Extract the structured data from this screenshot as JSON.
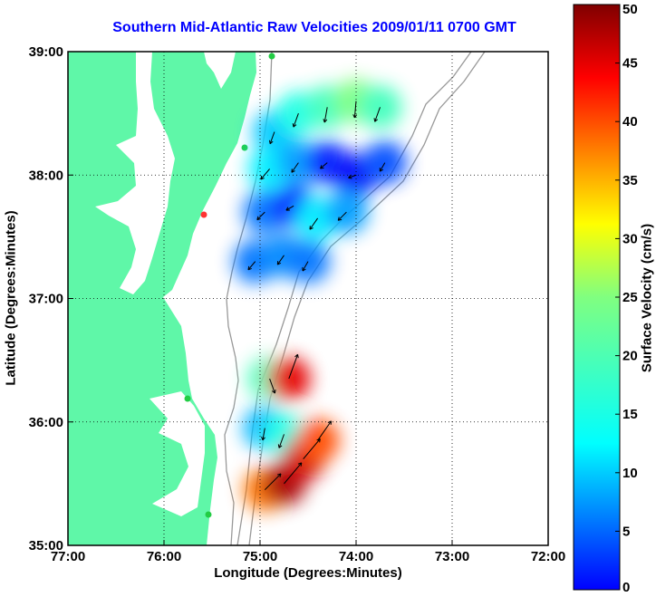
{
  "chart_data": {
    "type": "heatmap",
    "title": "Southern Mid-Atlantic Raw Velocities 2009/01/11 0700 GMT",
    "xlabel": "Longitude (Degrees:Minutes)",
    "ylabel": "Latitude (Degrees:Minutes)",
    "colorbar_label": "Surface Velocity (cm/s)",
    "xlim": [
      -77,
      -72
    ],
    "ylim": [
      35,
      39
    ],
    "colorbar_range": [
      0,
      50
    ],
    "x_ticks": [
      {
        "value": -77,
        "label": "77:00"
      },
      {
        "value": -76,
        "label": "76:00"
      },
      {
        "value": -75,
        "label": "75:00"
      },
      {
        "value": -74,
        "label": "74:00"
      },
      {
        "value": -73,
        "label": "73:00"
      },
      {
        "value": -72,
        "label": "72:00"
      }
    ],
    "y_ticks": [
      {
        "value": 35,
        "label": "35:00"
      },
      {
        "value": 36,
        "label": "36:00"
      },
      {
        "value": 37,
        "label": "37:00"
      },
      {
        "value": 38,
        "label": "38:00"
      },
      {
        "value": 39,
        "label": "39:00"
      }
    ],
    "colorbar_ticks": [
      0,
      5,
      10,
      15,
      20,
      25,
      30,
      35,
      40,
      45,
      50
    ],
    "grid": "dotted",
    "velocity_field": [
      {
        "lon": -74.85,
        "lat": 38.35,
        "speed": 16,
        "dir": 200
      },
      {
        "lon": -74.6,
        "lat": 38.5,
        "speed": 20,
        "dir": 200
      },
      {
        "lon": -74.3,
        "lat": 38.55,
        "speed": 22,
        "dir": 190
      },
      {
        "lon": -74.0,
        "lat": 38.6,
        "speed": 25,
        "dir": 185
      },
      {
        "lon": -73.75,
        "lat": 38.55,
        "speed": 22,
        "dir": 200
      },
      {
        "lon": -74.9,
        "lat": 38.05,
        "speed": 18,
        "dir": 220
      },
      {
        "lon": -74.6,
        "lat": 38.1,
        "speed": 14,
        "dir": 215
      },
      {
        "lon": -74.3,
        "lat": 38.1,
        "speed": 8,
        "dir": 230
      },
      {
        "lon": -74.0,
        "lat": 38.0,
        "speed": 6,
        "dir": 250
      },
      {
        "lon": -73.7,
        "lat": 38.1,
        "speed": 10,
        "dir": 210
      },
      {
        "lon": -74.95,
        "lat": 37.7,
        "speed": 12,
        "dir": 225
      },
      {
        "lon": -74.65,
        "lat": 37.75,
        "speed": 7,
        "dir": 240
      },
      {
        "lon": -74.4,
        "lat": 37.65,
        "speed": 18,
        "dir": 215
      },
      {
        "lon": -74.1,
        "lat": 37.7,
        "speed": 14,
        "dir": 225
      },
      {
        "lon": -75.05,
        "lat": 37.3,
        "speed": 12,
        "dir": 220
      },
      {
        "lon": -74.75,
        "lat": 37.35,
        "speed": 13,
        "dir": 215
      },
      {
        "lon": -74.5,
        "lat": 37.3,
        "speed": 12,
        "dir": 210
      },
      {
        "lon": -74.9,
        "lat": 36.35,
        "speed": 22,
        "dir": 160
      },
      {
        "lon": -74.7,
        "lat": 36.35,
        "speed": 45,
        "dir": 20
      },
      {
        "lon": -74.95,
        "lat": 35.95,
        "speed": 15,
        "dir": 190
      },
      {
        "lon": -74.75,
        "lat": 35.9,
        "speed": 20,
        "dir": 200
      },
      {
        "lon": -74.95,
        "lat": 35.45,
        "speed": 38,
        "dir": 45
      },
      {
        "lon": -74.75,
        "lat": 35.5,
        "speed": 48,
        "dir": 40
      },
      {
        "lon": -74.55,
        "lat": 35.7,
        "speed": 46,
        "dir": 40
      },
      {
        "lon": -74.4,
        "lat": 35.85,
        "speed": 40,
        "dir": 35
      }
    ]
  }
}
